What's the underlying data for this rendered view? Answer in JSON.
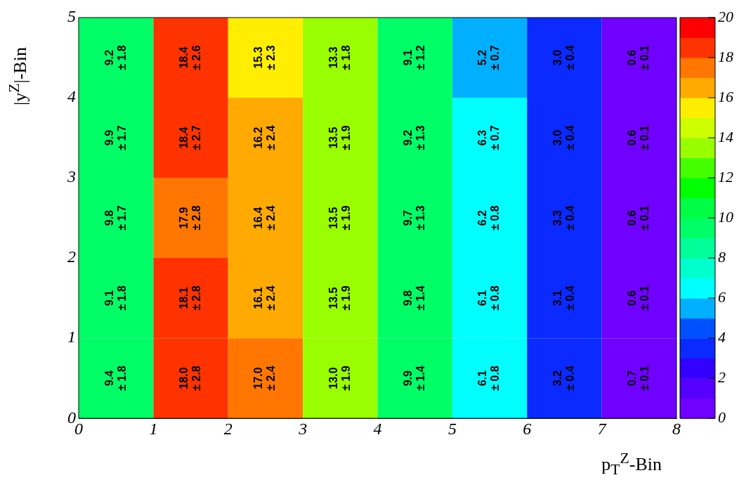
{
  "chart_data": {
    "type": "heatmap",
    "xlabel": "p$_{T}$$^{Z}$-Bin",
    "ylabel": "|y$^{Z}$|-Bin",
    "xlim": [
      0,
      8
    ],
    "xticks": [
      0,
      1,
      2,
      3,
      4,
      5,
      6,
      7,
      8
    ],
    "ylim": [
      0,
      5
    ],
    "yticks": [
      0,
      1,
      2,
      3,
      4,
      5
    ],
    "clim": [
      0,
      20
    ],
    "cticks": [
      0,
      2,
      4,
      6,
      8,
      10,
      12,
      14,
      16,
      18,
      20
    ],
    "cells": [
      [
        9.2,
        18.4,
        15.3,
        13.3,
        9.1,
        5.2,
        3.0,
        0.6
      ],
      [
        9.9,
        18.4,
        16.2,
        13.5,
        9.2,
        6.3,
        3.0,
        0.6
      ],
      [
        9.8,
        17.9,
        16.4,
        13.5,
        9.7,
        6.2,
        3.3,
        0.6
      ],
      [
        9.1,
        18.1,
        16.1,
        13.5,
        9.8,
        6.1,
        3.1,
        0.6
      ],
      [
        9.4,
        18.0,
        17.0,
        13.0,
        9.9,
        6.1,
        3.2,
        0.7
      ]
    ],
    "cell_labels": [
      [
        "9.2\n± 1.8",
        "18.4\n± 2.6",
        "15.3\n± 2.3",
        "13.3\n± 1.8",
        "9.1\n± 1.2",
        "5.2\n± 0.7",
        "3.0\n± 0.4",
        "0.6\n± 0.1"
      ],
      [
        "9.9\n± 1.7",
        "18.4\n± 2.7",
        "16.2\n± 2.4",
        "13.5\n± 1.9",
        "9.2\n± 1.3",
        "6.3\n± 0.7",
        "3.0\n± 0.4",
        "0.6\n± 0.1"
      ],
      [
        "9.8\n± 1.7",
        "17.9\n± 2.8",
        "16.4\n± 2.4",
        "13.5\n± 1.9",
        "9.7\n± 1.3",
        "6.2\n± 0.8",
        "3.3\n± 0.4",
        "0.6\n± 0.1"
      ],
      [
        "9.1\n± 1.8",
        "18.1\n± 2.8",
        "16.1\n± 2.4",
        "13.5\n± 1.9",
        "9.8\n± 1.4",
        "6.1\n± 0.8",
        "3.1\n± 0.4",
        "0.6\n± 0.1"
      ],
      [
        "9.4\n± 1.8",
        "18.0\n± 2.8",
        "17.0\n± 2.4",
        "13.0\n± 1.9",
        "9.9\n± 1.4",
        "6.1\n± 0.8",
        "3.2\n± 0.4",
        "0.7\n± 0.1"
      ]
    ]
  }
}
